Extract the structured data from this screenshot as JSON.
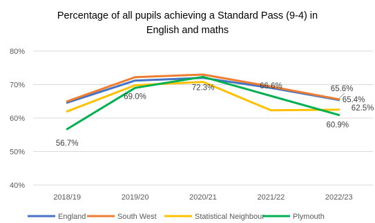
{
  "chart_data": {
    "type": "line",
    "title_lines": [
      "Percentage of all pupils achieving a Standard Pass (9-4) in",
      "English and maths"
    ],
    "categories": [
      "2018/19",
      "2019/20",
      "2020/21",
      "2021/22",
      "2022/23"
    ],
    "ylim": [
      40,
      80
    ],
    "yticks": [
      "40%",
      "50%",
      "60%",
      "70%",
      "80%"
    ],
    "ytick_values": [
      40,
      50,
      60,
      70,
      80
    ],
    "grid": true,
    "legend_position": "bottom",
    "series": [
      {
        "name": "England",
        "color": "#4472C4",
        "values": [
          64.6,
          71.2,
          72.0,
          69.0,
          65.4
        ]
      },
      {
        "name": "South West",
        "color": "#ED7D31",
        "values": [
          65.0,
          72.2,
          73.0,
          69.4,
          65.6
        ]
      },
      {
        "name": "Statistical Neighbour",
        "color": "#FFC000",
        "values": [
          62.0,
          69.8,
          70.8,
          62.3,
          62.5
        ]
      },
      {
        "name": "Plymouth",
        "color": "#00B050",
        "values": [
          56.7,
          69.0,
          72.3,
          66.6,
          60.9
        ]
      }
    ],
    "data_labels": [
      {
        "series": "Plymouth",
        "index": 0,
        "text": "56.7%"
      },
      {
        "series": "Plymouth",
        "index": 1,
        "text": "69.0%"
      },
      {
        "series": "Plymouth",
        "index": 2,
        "text": "72.3%"
      },
      {
        "series": "Plymouth",
        "index": 3,
        "text": "66.6%"
      },
      {
        "series": "Plymouth",
        "index": 4,
        "text": "60.9%"
      },
      {
        "series": "South West",
        "index": 4,
        "text": "65.6%"
      },
      {
        "series": "England",
        "index": 4,
        "text": "65.4%"
      },
      {
        "series": "Statistical Neighbour",
        "index": 4,
        "text": "62.5%"
      }
    ]
  }
}
